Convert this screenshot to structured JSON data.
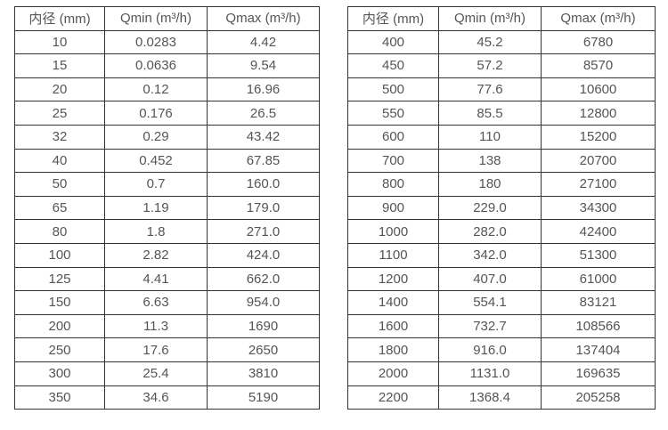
{
  "colors": {
    "background": "#ffffff",
    "table_border": "#333333",
    "text": "#555555"
  },
  "chart_data": [
    {
      "type": "table",
      "title": "",
      "columns": [
        "内径 (mm)",
        "Qmin (m³/h)",
        "Qmax (m³/h)"
      ],
      "rows": [
        [
          "10",
          "0.0283",
          "4.42"
        ],
        [
          "15",
          "0.0636",
          "9.54"
        ],
        [
          "20",
          "0.12",
          "16.96"
        ],
        [
          "25",
          "0.176",
          "26.5"
        ],
        [
          "32",
          "0.29",
          "43.42"
        ],
        [
          "40",
          "0.452",
          "67.85"
        ],
        [
          "50",
          "0.7",
          "160.0"
        ],
        [
          "65",
          "1.19",
          "179.0"
        ],
        [
          "80",
          "1.8",
          "271.0"
        ],
        [
          "100",
          "2.82",
          "424.0"
        ],
        [
          "125",
          "4.41",
          "662.0"
        ],
        [
          "150",
          "6.63",
          "954.0"
        ],
        [
          "200",
          "11.3",
          "1690"
        ],
        [
          "250",
          "17.6",
          "2650"
        ],
        [
          "300",
          "25.4",
          "3810"
        ],
        [
          "350",
          "34.6",
          "5190"
        ]
      ]
    },
    {
      "type": "table",
      "title": "",
      "columns": [
        "内径 (mm)",
        "Qmin (m³/h)",
        "Qmax (m³/h)"
      ],
      "rows": [
        [
          "400",
          "45.2",
          "6780"
        ],
        [
          "450",
          "57.2",
          "8570"
        ],
        [
          "500",
          "77.6",
          "10600"
        ],
        [
          "550",
          "85.5",
          "12800"
        ],
        [
          "600",
          "110",
          "15200"
        ],
        [
          "700",
          "138",
          "20700"
        ],
        [
          "800",
          "180",
          "27100"
        ],
        [
          "900",
          "229.0",
          "34300"
        ],
        [
          "1000",
          "282.0",
          "42400"
        ],
        [
          "1100",
          "342.0",
          "51300"
        ],
        [
          "1200",
          "407.0",
          "61000"
        ],
        [
          "1400",
          "554.1",
          "83121"
        ],
        [
          "1600",
          "732.7",
          "108566"
        ],
        [
          "1800",
          "916.0",
          "137404"
        ],
        [
          "2000",
          "1131.0",
          "169635"
        ],
        [
          "2200",
          "1368.4",
          "205258"
        ]
      ]
    }
  ]
}
